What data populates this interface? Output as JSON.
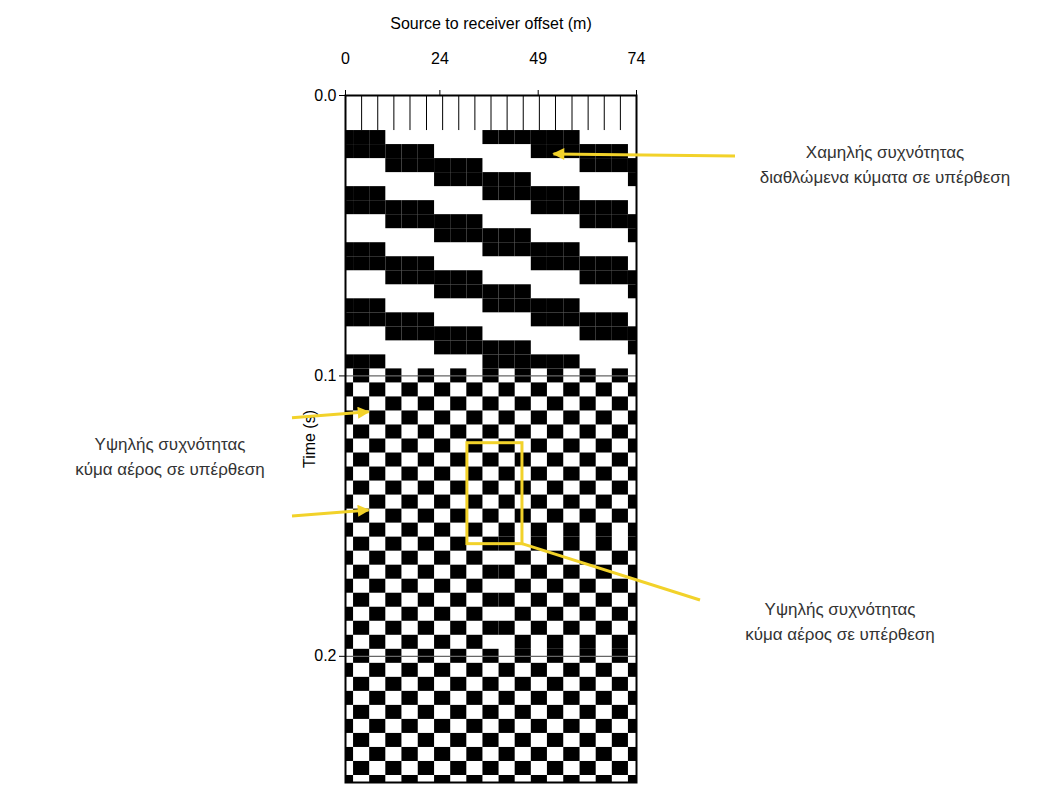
{
  "chart_data": {
    "type": "seismic",
    "x_label": "Source to receiver offset (m)",
    "y_label": "Time (s)",
    "xlim": [
      0,
      74
    ],
    "xticks": [
      0,
      24,
      49,
      74
    ],
    "ylim": [
      0,
      0.245
    ],
    "yticks": [
      {
        "value": 0,
        "label": "0.0"
      },
      0.1,
      0.2
    ],
    "grid": true,
    "color": "black",
    "offsets": [
      0,
      4.1,
      8.2,
      12.3,
      16.4,
      20.6,
      24.7,
      28.8,
      32.9,
      37,
      41.1,
      45.2,
      49.3,
      53.4,
      57.6,
      61.7,
      65.8,
      69.9,
      74
    ],
    "times": [
      0.015,
      0.02,
      0.025,
      0.03,
      0.035,
      0.04,
      0.045,
      0.05,
      0.055,
      0.06,
      0.065,
      0.07,
      0.075,
      0.08,
      0.085,
      0.09,
      0.095,
      0.1,
      0.105,
      0.11,
      0.115,
      0.12,
      0.125,
      0.13,
      0.135,
      0.14,
      0.145,
      0.15,
      0.155,
      0.16,
      0.165,
      0.17,
      0.175,
      0.18,
      0.185,
      0.19,
      0.195,
      0.2,
      0.205,
      0.21,
      0.215,
      0.22,
      0.225,
      0.23,
      0.235,
      0.24,
      0.245
    ],
    "amplitudes": [
      [
        1,
        1,
        1,
        -1,
        -1,
        -1,
        -1,
        -1,
        -1,
        1,
        1,
        1,
        1,
        1,
        1,
        -1,
        -1,
        -1,
        -1
      ],
      [
        1,
        1,
        1,
        1,
        1,
        1,
        -1,
        -1,
        -1,
        -1,
        -1,
        -1,
        1,
        1,
        1,
        1,
        1,
        1,
        -1
      ],
      [
        -1,
        -1,
        -1,
        1,
        1,
        1,
        1,
        1,
        1,
        -1,
        -1,
        -1,
        -1,
        -1,
        -1,
        1,
        1,
        1,
        1
      ],
      [
        -1,
        -1,
        -1,
        -1,
        -1,
        -1,
        1,
        1,
        1,
        1,
        1,
        1,
        -1,
        -1,
        -1,
        -1,
        -1,
        -1,
        1
      ],
      [
        1,
        1,
        1,
        -1,
        -1,
        -1,
        -1,
        -1,
        -1,
        1,
        1,
        1,
        1,
        1,
        1,
        -1,
        -1,
        -1,
        -1
      ],
      [
        1,
        1,
        1,
        1,
        1,
        1,
        -1,
        -1,
        -1,
        -1,
        -1,
        -1,
        1,
        1,
        1,
        1,
        1,
        1,
        -1
      ],
      [
        -1,
        -1,
        -1,
        1,
        1,
        1,
        1,
        1,
        1,
        -1,
        -1,
        -1,
        -1,
        -1,
        -1,
        1,
        1,
        1,
        1
      ],
      [
        -1,
        -1,
        -1,
        -1,
        -1,
        -1,
        1,
        1,
        1,
        1,
        1,
        1,
        -1,
        -1,
        -1,
        -1,
        -1,
        -1,
        1
      ],
      [
        1,
        1,
        1,
        -1,
        -1,
        -1,
        -1,
        -1,
        -1,
        1,
        1,
        1,
        1,
        1,
        1,
        -1,
        -1,
        -1,
        -1
      ],
      [
        1,
        1,
        1,
        1,
        1,
        1,
        -1,
        -1,
        -1,
        -1,
        -1,
        -1,
        1,
        1,
        1,
        1,
        1,
        1,
        -1
      ],
      [
        -1,
        -1,
        -1,
        1,
        1,
        1,
        1,
        1,
        1,
        -1,
        -1,
        -1,
        -1,
        -1,
        -1,
        1,
        1,
        1,
        1
      ],
      [
        -1,
        -1,
        -1,
        -1,
        -1,
        -1,
        1,
        1,
        1,
        1,
        1,
        1,
        -1,
        -1,
        -1,
        -1,
        -1,
        -1,
        1
      ],
      [
        1,
        1,
        1,
        -1,
        -1,
        -1,
        -1,
        -1,
        -1,
        1,
        1,
        1,
        1,
        1,
        1,
        -1,
        -1,
        -1,
        -1
      ],
      [
        1,
        1,
        1,
        1,
        1,
        1,
        -1,
        -1,
        -1,
        -1,
        -1,
        -1,
        1,
        1,
        1,
        1,
        1,
        1,
        -1
      ],
      [
        -1,
        -1,
        -1,
        1,
        1,
        1,
        1,
        1,
        1,
        -1,
        -1,
        -1,
        -1,
        -1,
        -1,
        1,
        1,
        1,
        1
      ],
      [
        -1,
        -1,
        -1,
        -1,
        -1,
        -1,
        1,
        1,
        1,
        1,
        1,
        1,
        -1,
        -1,
        -1,
        -1,
        -1,
        -1,
        1
      ],
      [
        1,
        1,
        1,
        -1,
        -1,
        -1,
        -1,
        -1,
        -1,
        1,
        1,
        1,
        1,
        1,
        1,
        -1,
        -1,
        -1,
        -1
      ],
      [
        -1,
        1,
        -1,
        1,
        -1,
        1,
        -1,
        1,
        -1,
        1,
        -1,
        1,
        -1,
        1,
        -1,
        1,
        -1,
        1,
        -1
      ],
      [
        1,
        -1,
        1,
        -1,
        1,
        -1,
        1,
        -1,
        1,
        -1,
        1,
        -1,
        1,
        -1,
        1,
        -1,
        1,
        -1,
        1
      ],
      [
        -1,
        1,
        -1,
        1,
        -1,
        1,
        -1,
        1,
        -1,
        1,
        -1,
        1,
        -1,
        1,
        -1,
        1,
        -1,
        1,
        -1
      ],
      [
        1,
        -1,
        1,
        -1,
        1,
        -1,
        1,
        -1,
        1,
        -1,
        1,
        -1,
        1,
        -1,
        1,
        -1,
        1,
        -1,
        1
      ],
      [
        -1,
        1,
        -1,
        1,
        -1,
        1,
        -1,
        1,
        -1,
        1,
        -1,
        1,
        -1,
        1,
        -1,
        1,
        -1,
        1,
        -1
      ],
      [
        1,
        -1,
        1,
        -1,
        1,
        -1,
        1,
        -1,
        1,
        -1,
        1,
        -1,
        1,
        -1,
        1,
        -1,
        1,
        -1,
        1
      ],
      [
        -1,
        1,
        -1,
        1,
        -1,
        1,
        -1,
        1,
        -1,
        1,
        -1,
        1,
        -1,
        1,
        -1,
        1,
        -1,
        1,
        -1
      ],
      [
        1,
        -1,
        1,
        -1,
        1,
        -1,
        1,
        -1,
        1,
        -1,
        1,
        -1,
        1,
        -1,
        1,
        -1,
        1,
        -1,
        1
      ],
      [
        -1,
        1,
        -1,
        1,
        -1,
        1,
        -1,
        1,
        -1,
        1,
        -1,
        1,
        -1,
        1,
        -1,
        1,
        -1,
        1,
        -1
      ],
      [
        1,
        -1,
        1,
        -1,
        1,
        -1,
        1,
        -1,
        1,
        -1,
        1,
        -1,
        1,
        -1,
        1,
        -1,
        1,
        -1,
        1
      ],
      [
        -1,
        1,
        -1,
        1,
        -1,
        1,
        -1,
        1,
        -1,
        1,
        -1,
        1,
        -1,
        1,
        -1,
        1,
        -1,
        1,
        -1
      ],
      [
        1,
        -1,
        1,
        -1,
        1,
        -1,
        1,
        -1,
        1,
        -1,
        1,
        -1,
        1,
        -1,
        1,
        -1,
        1,
        -1,
        1
      ],
      [
        -1,
        1,
        -1,
        1,
        -1,
        1,
        -1,
        1,
        -1,
        1,
        1,
        -1,
        1,
        -1,
        1,
        -1,
        1,
        -1,
        1
      ],
      [
        1,
        -1,
        1,
        -1,
        1,
        -1,
        1,
        -1,
        1,
        -1,
        -1,
        1,
        -1,
        1,
        -1,
        1,
        -1,
        1,
        -1
      ],
      [
        -1,
        1,
        -1,
        1,
        -1,
        1,
        -1,
        1,
        -1,
        1,
        1,
        -1,
        1,
        -1,
        1,
        -1,
        1,
        -1,
        1
      ],
      [
        1,
        -1,
        1,
        -1,
        1,
        -1,
        1,
        -1,
        1,
        -1,
        -1,
        1,
        -1,
        1,
        -1,
        1,
        -1,
        1,
        -1
      ],
      [
        -1,
        1,
        -1,
        1,
        -1,
        1,
        -1,
        1,
        -1,
        1,
        1,
        -1,
        1,
        -1,
        1,
        -1,
        1,
        -1,
        1
      ],
      [
        1,
        -1,
        1,
        -1,
        1,
        -1,
        1,
        -1,
        1,
        -1,
        -1,
        1,
        -1,
        1,
        -1,
        1,
        -1,
        1,
        -1
      ],
      [
        -1,
        1,
        -1,
        1,
        -1,
        1,
        -1,
        1,
        -1,
        1,
        1,
        -1,
        1,
        -1,
        1,
        -1,
        1,
        -1,
        1
      ],
      [
        1,
        -1,
        1,
        -1,
        1,
        -1,
        1,
        -1,
        1,
        -1,
        -1,
        1,
        -1,
        1,
        -1,
        1,
        -1,
        1,
        -1
      ],
      [
        -1,
        1,
        -1,
        1,
        -1,
        1,
        -1,
        1,
        -1,
        1,
        -1,
        1,
        -1,
        1,
        -1,
        1,
        -1,
        1,
        -1
      ],
      [
        1,
        -1,
        1,
        -1,
        1,
        -1,
        1,
        -1,
        1,
        -1,
        1,
        -1,
        1,
        -1,
        1,
        -1,
        1,
        -1,
        1
      ],
      [
        -1,
        1,
        -1,
        1,
        -1,
        1,
        -1,
        1,
        -1,
        1,
        -1,
        1,
        -1,
        1,
        -1,
        1,
        -1,
        1,
        -1
      ],
      [
        1,
        -1,
        1,
        -1,
        1,
        -1,
        1,
        -1,
        1,
        -1,
        1,
        -1,
        1,
        -1,
        1,
        -1,
        1,
        -1,
        1
      ],
      [
        -1,
        1,
        -1,
        1,
        -1,
        1,
        -1,
        1,
        -1,
        1,
        -1,
        1,
        -1,
        1,
        -1,
        1,
        -1,
        1,
        -1
      ],
      [
        1,
        -1,
        1,
        -1,
        1,
        -1,
        1,
        -1,
        1,
        -1,
        1,
        -1,
        1,
        -1,
        1,
        -1,
        1,
        -1,
        1
      ],
      [
        -1,
        1,
        -1,
        1,
        -1,
        1,
        -1,
        1,
        -1,
        1,
        -1,
        1,
        -1,
        1,
        -1,
        1,
        -1,
        1,
        -1
      ],
      [
        1,
        -1,
        1,
        -1,
        1,
        -1,
        1,
        -1,
        1,
        -1,
        1,
        -1,
        1,
        -1,
        1,
        -1,
        1,
        -1,
        1
      ],
      [
        -1,
        1,
        -1,
        1,
        -1,
        1,
        -1,
        1,
        -1,
        1,
        -1,
        1,
        -1,
        1,
        -1,
        1,
        -1,
        1,
        -1
      ],
      [
        1,
        -1,
        1,
        -1,
        1,
        -1,
        1,
        -1,
        1,
        -1,
        1,
        -1,
        1,
        -1,
        1,
        -1,
        1,
        -1,
        1
      ]
    ],
    "annotations": [
      {
        "lines": [
          "Χαμηλής συχνότητας",
          "διαθλώμενα κύματα σε υπέρθεση"
        ],
        "targets": [
          {
            "x": 52,
            "y": 0.021
          }
        ]
      },
      {
        "lines": [
          "Υψηλής συχνότητας",
          "κύμα αέρος σε υπέρθεση"
        ],
        "targets": [
          {
            "x": 6,
            "y": 0.113
          },
          {
            "x": 6,
            "y": 0.148
          }
        ]
      },
      {
        "lines": [
          "Υψηλής συχνότητας",
          "κύμα αέρος σε υπέρθεση"
        ],
        "box": {
          "x": [
            31,
            45
          ],
          "y": [
            0.124,
            0.16
          ]
        }
      }
    ]
  }
}
